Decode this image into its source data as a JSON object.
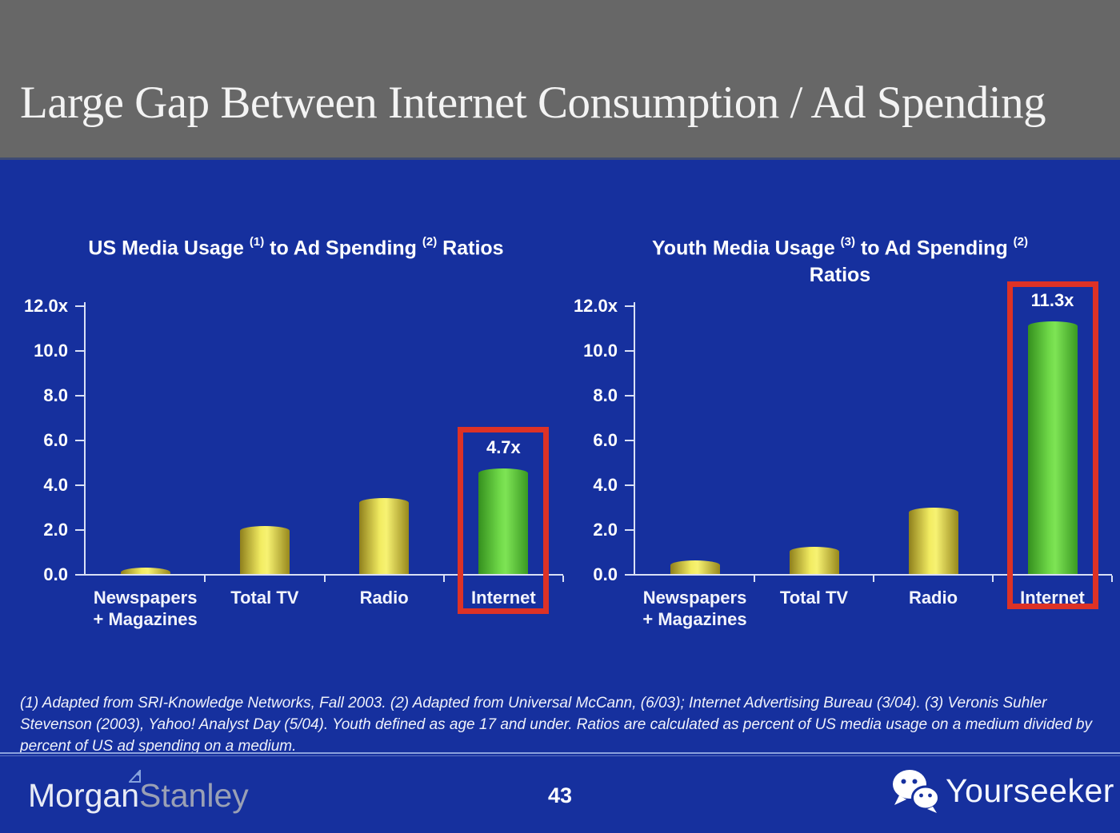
{
  "header": {
    "title": "Large Gap Between Internet Consumption / Ad Spending"
  },
  "colors": {
    "background_blue": "#16309e",
    "header_gray": "#676767",
    "bar_yellow": "#f2ec62",
    "bar_green": "#6fd848",
    "highlight_red": "#dd3226",
    "axis": "#d9e0f5"
  },
  "chart_data": [
    {
      "type": "bar",
      "title": "US Media Usage (1) to Ad Spending (2) Ratios",
      "title_segments": [
        {
          "text": "US Media Usage "
        },
        {
          "sup": "(1)"
        },
        {
          "text": " to Ad Spending "
        },
        {
          "sup": "(2)"
        },
        {
          "text": " Ratios"
        }
      ],
      "categories": [
        "Newspapers + Magazines",
        "Total TV",
        "Radio",
        "Internet"
      ],
      "categories_lines": [
        [
          "Newspapers",
          "+ Magazines"
        ],
        [
          "Total TV"
        ],
        [
          "Radio"
        ],
        [
          "Internet"
        ]
      ],
      "values": [
        0.3,
        2.15,
        3.4,
        4.7
      ],
      "bar_colors": [
        "yellow",
        "yellow",
        "yellow",
        "green"
      ],
      "value_labels": [
        "",
        "",
        "",
        "4.7x"
      ],
      "y_ticks": [
        "12.0x",
        "10.0",
        "8.0",
        "6.0",
        "4.0",
        "2.0",
        "0.0"
      ],
      "ylim": [
        0,
        12
      ],
      "grid": "off",
      "legend": "none",
      "highlight_index": 3,
      "xlabel": "",
      "ylabel": ""
    },
    {
      "type": "bar",
      "title": "Youth Media Usage (3) to Ad Spending (2) Ratios",
      "title_segments": [
        {
          "text": "Youth Media Usage "
        },
        {
          "sup": "(3)"
        },
        {
          "text": " to Ad Spending "
        },
        {
          "sup": "(2)"
        },
        {
          "br": true
        },
        {
          "text": "Ratios"
        }
      ],
      "categories": [
        "Newspapers + Magazines",
        "Total TV",
        "Radio",
        "Internet"
      ],
      "categories_lines": [
        [
          "Newspapers",
          "+ Magazines"
        ],
        [
          "Total TV"
        ],
        [
          "Radio"
        ],
        [
          "Internet"
        ]
      ],
      "values": [
        0.6,
        1.2,
        2.95,
        11.3
      ],
      "bar_colors": [
        "yellow",
        "yellow",
        "yellow",
        "green"
      ],
      "value_labels": [
        "",
        "",
        "",
        "11.3x"
      ],
      "y_ticks": [
        "12.0x",
        "10.0",
        "8.0",
        "6.0",
        "4.0",
        "2.0",
        "0.0"
      ],
      "ylim": [
        0,
        12
      ],
      "grid": "off",
      "legend": "none",
      "highlight_index": 3,
      "xlabel": "",
      "ylabel": ""
    }
  ],
  "footnote": "(1) Adapted from SRI-Knowledge Networks, Fall 2003.  (2) Adapted from Universal McCann, (6/03); Internet Advertising Bureau (3/04). (3) Veronis Suhler Stevenson (2003), Yahoo! Analyst Day (5/04).  Youth defined as age 17 and under.  Ratios are calculated as percent of US media usage on a medium divided by percent of US ad spending on a medium.",
  "footer": {
    "page_number": "43",
    "brand_left": {
      "part1": "Morgan",
      "part2": "Stanley"
    },
    "brand_right": {
      "label": "Yourseeker"
    }
  }
}
